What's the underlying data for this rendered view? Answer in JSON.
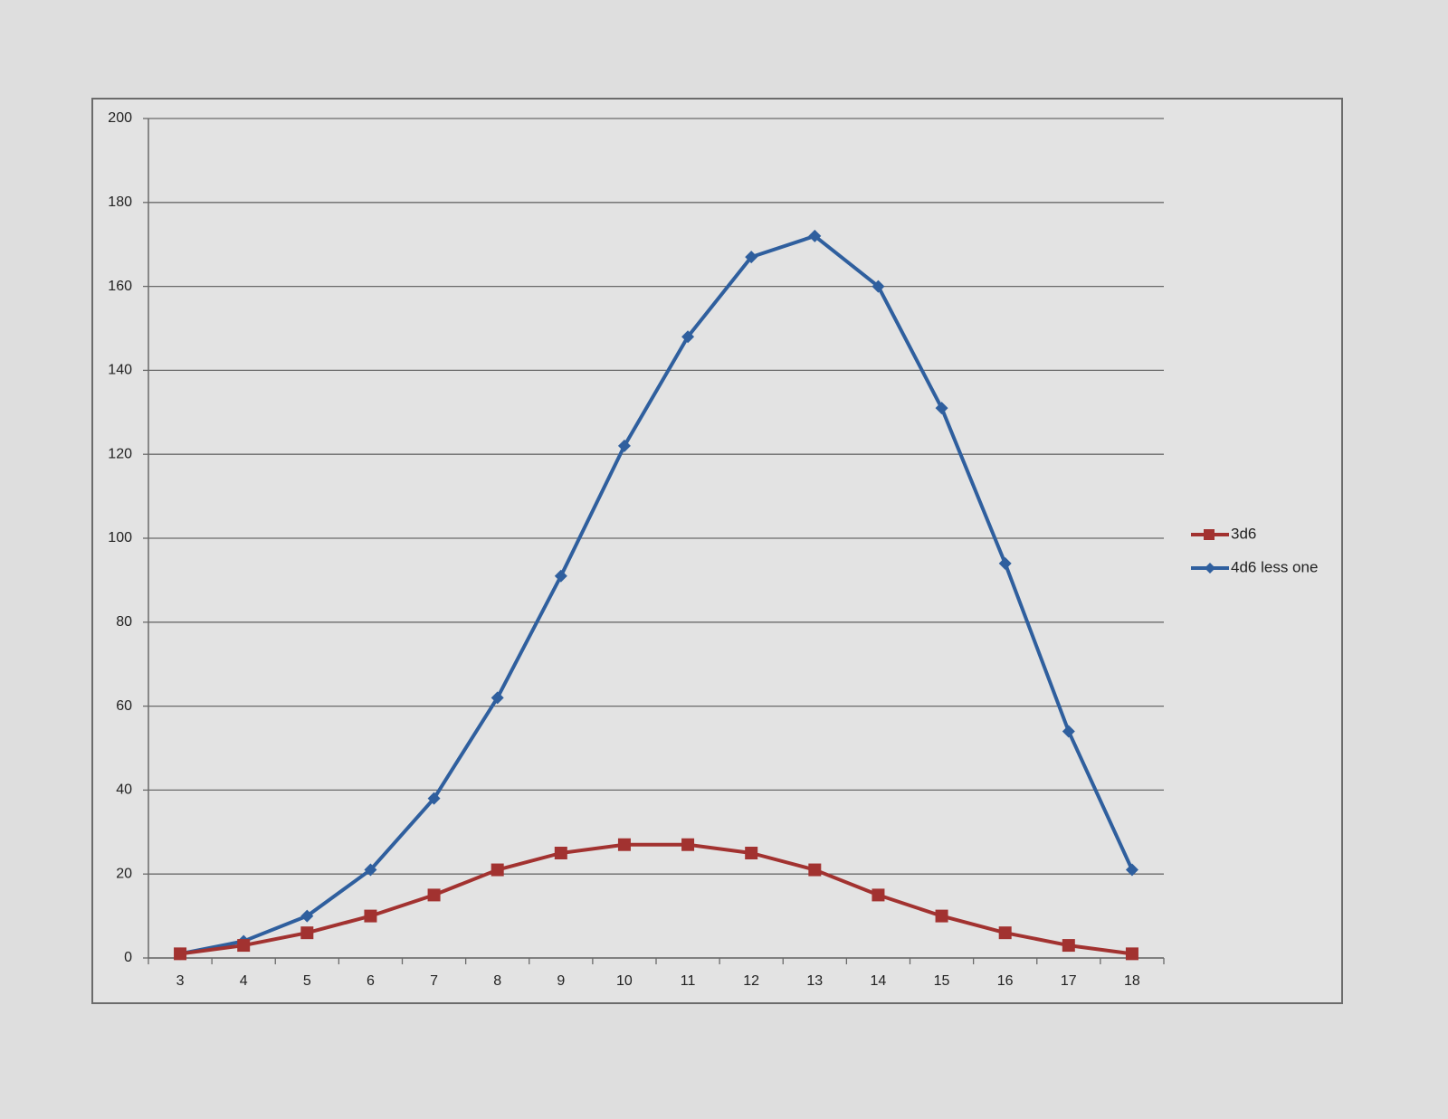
{
  "chart_data": {
    "type": "line",
    "categories": [
      3,
      4,
      5,
      6,
      7,
      8,
      9,
      10,
      11,
      12,
      13,
      14,
      15,
      16,
      17,
      18
    ],
    "series": [
      {
        "name": "3d6",
        "color": "#a23230",
        "marker": "square",
        "values": [
          1,
          3,
          6,
          10,
          15,
          21,
          25,
          27,
          27,
          25,
          21,
          15,
          10,
          6,
          3,
          1
        ]
      },
      {
        "name": "4d6 less one",
        "color": "#2f5f9e",
        "marker": "diamond",
        "values": [
          1,
          4,
          10,
          21,
          38,
          62,
          91,
          122,
          148,
          167,
          172,
          160,
          131,
          94,
          54,
          21
        ]
      }
    ],
    "ylim": [
      0,
      200
    ],
    "yticks": [
      0,
      20,
      40,
      60,
      80,
      100,
      120,
      140,
      160,
      180,
      200
    ],
    "grid": true,
    "legend": "right"
  }
}
